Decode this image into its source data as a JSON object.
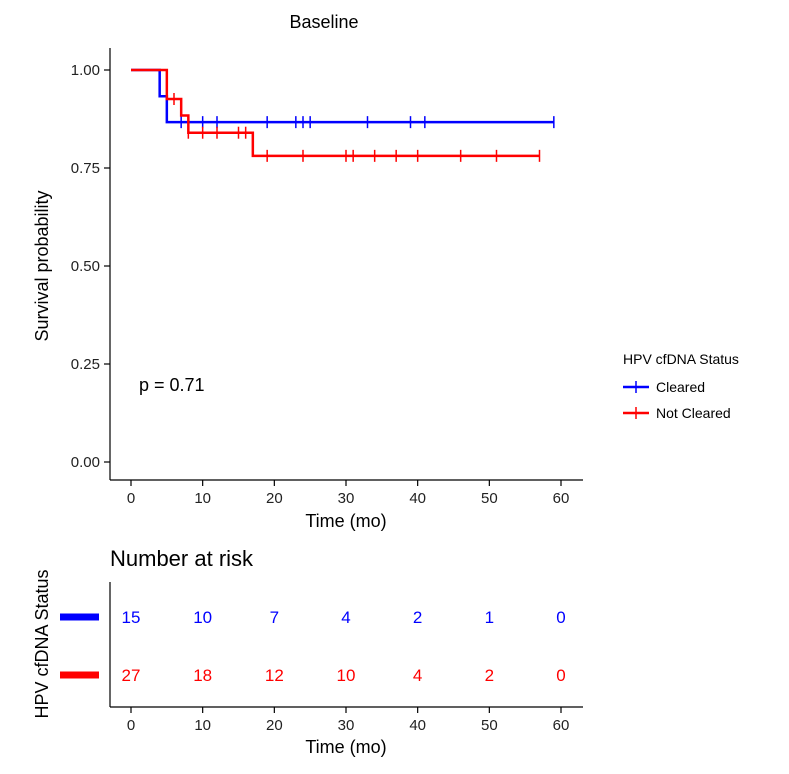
{
  "chart_data": [
    {
      "type": "line",
      "subtype": "kaplan-meier",
      "title": "Baseline",
      "xlabel": "Time (mo)",
      "ylabel": "Survival probability",
      "xlim": [
        0,
        60
      ],
      "ylim": [
        0,
        1
      ],
      "x_ticks": [
        "0",
        "10",
        "20",
        "30",
        "40",
        "50",
        "60"
      ],
      "y_ticks": [
        "0.00",
        "0.25",
        "0.50",
        "0.75",
        "1.00"
      ],
      "grid": false,
      "annotation": "p = 0.71",
      "legend": {
        "title": "HPV cfDNA Status",
        "placement": "right",
        "entries": [
          "Cleared",
          "Not Cleared"
        ]
      },
      "series": [
        {
          "name": "Cleared",
          "color": "#0000ff",
          "steps": [
            [
              0,
              1.0
            ],
            [
              4,
              0.933
            ],
            [
              5,
              0.867
            ],
            [
              59,
              0.867
            ]
          ],
          "censor_times": [
            7,
            10,
            12,
            19,
            23,
            24,
            25,
            33,
            39,
            41,
            59
          ]
        },
        {
          "name": "Not Cleared",
          "color": "#ff0000",
          "steps": [
            [
              0,
              1.0
            ],
            [
              5,
              0.926
            ],
            [
              7,
              0.884
            ],
            [
              8,
              0.84
            ],
            [
              17,
              0.781
            ],
            [
              57,
              0.781
            ]
          ],
          "censor_times": [
            6,
            8,
            10,
            12,
            15,
            16,
            19,
            24,
            30,
            31,
            34,
            37,
            40,
            46,
            51,
            57
          ]
        }
      ]
    },
    {
      "type": "table",
      "title": "Number at risk",
      "ylabel": "HPV cfDNA Status",
      "xlabel": "Time (mo)",
      "x_ticks": [
        "0",
        "10",
        "20",
        "30",
        "40",
        "50",
        "60"
      ],
      "times": [
        0,
        10,
        20,
        30,
        40,
        50,
        60
      ],
      "rows": [
        {
          "name": "Cleared",
          "color": "#0000ff",
          "values": [
            "15",
            "10",
            "7",
            "4",
            "2",
            "1",
            "0"
          ]
        },
        {
          "name": "Not Cleared",
          "color": "#ff0000",
          "values": [
            "27",
            "18",
            "12",
            "10",
            "4",
            "2",
            "0"
          ]
        }
      ]
    }
  ]
}
